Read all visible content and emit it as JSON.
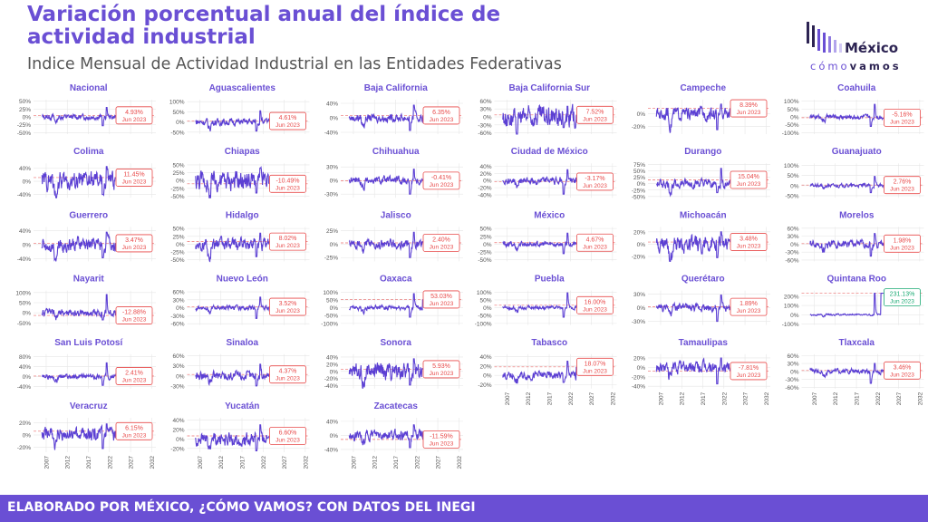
{
  "header": {
    "title": "Variación porcentual anual del índice de actividad industrial",
    "subtitle": "Indice Mensual de Actividad Industrial en las Entidades Federativas"
  },
  "logo": {
    "text_top": "México",
    "text_bottom_a": "cómo",
    "text_bottom_b": "vamos"
  },
  "footer": {
    "text": "ELABORADO POR MÉXICO, ¿CÓMO VAMOS? CON DATOS DEL INEGI"
  },
  "colors": {
    "accent": "#6a4fd4",
    "line": "#5b3fd3",
    "label_red": "#e84a4a",
    "label_green": "#1aaa73",
    "grid": "#e6e6e6"
  },
  "chart_data": {
    "type": "line",
    "x_ticks": [
      "2007",
      "2012",
      "2017",
      "2022",
      "2027",
      "2032"
    ],
    "xlim": [
      2004,
      2033
    ],
    "data_range": [
      2006,
      2023.42
    ],
    "last_period_label": "Jun 2023",
    "panels": [
      {
        "name": "Nacional",
        "last": "4.93%",
        "y_ticks": [
          "50%",
          "25%",
          "0%",
          "-25%",
          "-50%"
        ],
        "ylim": [
          -55,
          55
        ],
        "tick_values": [
          50,
          25,
          0,
          -25,
          -50
        ],
        "amp": 6,
        "spike": 30,
        "dip": -28
      },
      {
        "name": "Aguascalientes",
        "last": "4.61%",
        "y_ticks": [
          "100%",
          "50%",
          "0%",
          "-50%"
        ],
        "ylim": [
          -60,
          110
        ],
        "tick_values": [
          100,
          50,
          0,
          -50
        ],
        "amp": 12,
        "spike": 55,
        "dip": -45
      },
      {
        "name": "Baja California",
        "last": "6.35%",
        "y_ticks": [
          "40%",
          "0%",
          "-40%"
        ],
        "ylim": [
          -45,
          50
        ],
        "tick_values": [
          40,
          0,
          -40
        ],
        "amp": 8,
        "spike": 35,
        "dip": -35
      },
      {
        "name": "Baja California Sur",
        "last": "7.52%",
        "y_ticks": [
          "60%",
          "30%",
          "0%",
          "-30%",
          "-60%"
        ],
        "ylim": [
          -65,
          65
        ],
        "tick_values": [
          60,
          30,
          0,
          -30,
          -60
        ],
        "amp": 28,
        "spike": 40,
        "dip": -40
      },
      {
        "name": "Campeche",
        "last": "8.39%",
        "y_ticks": [
          "0%",
          "-20%"
        ],
        "ylim": [
          -32,
          22
        ],
        "tick_values": [
          0,
          -20
        ],
        "amp": 7,
        "spike": 15,
        "dip": -25
      },
      {
        "name": "Coahuila",
        "last": "-5.16%",
        "y_ticks": [
          "100%",
          "50%",
          "0%",
          "-50%",
          "-100%"
        ],
        "ylim": [
          -110,
          110
        ],
        "tick_values": [
          100,
          50,
          0,
          -50,
          -100
        ],
        "amp": 10,
        "spike": 80,
        "dip": -60
      },
      {
        "name": "Colima",
        "last": "11.45%",
        "y_ticks": [
          "40%",
          "0%",
          "-40%"
        ],
        "ylim": [
          -50,
          55
        ],
        "tick_values": [
          40,
          0,
          -40
        ],
        "amp": 20,
        "spike": 45,
        "dip": -40
      },
      {
        "name": "Chiapas",
        "last": "-10.49%",
        "y_ticks": [
          "50%",
          "25%",
          "0%",
          "-25%",
          "-50%"
        ],
        "ylim": [
          -55,
          55
        ],
        "tick_values": [
          50,
          25,
          0,
          -25,
          -50
        ],
        "amp": 22,
        "spike": 40,
        "dip": -40
      },
      {
        "name": "Chihuahua",
        "last": "-0.41%",
        "y_ticks": [
          "30%",
          "0%",
          "-30%"
        ],
        "ylim": [
          -38,
          38
        ],
        "tick_values": [
          30,
          0,
          -30
        ],
        "amp": 6,
        "spike": 25,
        "dip": -30
      },
      {
        "name": "Ciudad de México",
        "last": "-3.17%",
        "y_ticks": [
          "40%",
          "20%",
          "0%",
          "-20%",
          "-40%"
        ],
        "ylim": [
          -48,
          48
        ],
        "tick_values": [
          40,
          20,
          0,
          -20,
          -40
        ],
        "amp": 7,
        "spike": 30,
        "dip": -38
      },
      {
        "name": "Durango",
        "last": "15.04%",
        "y_ticks": [
          "75%",
          "50%",
          "25%",
          "0%",
          "-25%",
          "-50%"
        ],
        "ylim": [
          -55,
          80
        ],
        "tick_values": [
          75,
          50,
          25,
          0,
          -25,
          -50
        ],
        "amp": 12,
        "spike": 60,
        "dip": -35
      },
      {
        "name": "Guanajuato",
        "last": "2.76%",
        "y_ticks": [
          "100%",
          "50%",
          "0%",
          "-50%"
        ],
        "ylim": [
          -60,
          110
        ],
        "tick_values": [
          100,
          50,
          0,
          -50
        ],
        "amp": 6,
        "spike": 45,
        "dip": -35
      },
      {
        "name": "Guerrero",
        "last": "3.47%",
        "y_ticks": [
          "40%",
          "0%",
          "-40%"
        ],
        "ylim": [
          -48,
          50
        ],
        "tick_values": [
          40,
          0,
          -40
        ],
        "amp": 14,
        "spike": 35,
        "dip": -38
      },
      {
        "name": "Hidalgo",
        "last": "8.02%",
        "y_ticks": [
          "50%",
          "25%",
          "0%",
          "-25%",
          "-50%"
        ],
        "ylim": [
          -55,
          55
        ],
        "tick_values": [
          50,
          25,
          0,
          -25,
          -50
        ],
        "amp": 14,
        "spike": 35,
        "dip": -40
      },
      {
        "name": "Jalisco",
        "last": "2.40%",
        "y_ticks": [
          "25%",
          "0%",
          "-25%"
        ],
        "ylim": [
          -32,
          32
        ],
        "tick_values": [
          25,
          0,
          -25
        ],
        "amp": 6,
        "spike": 22,
        "dip": -25
      },
      {
        "name": "México",
        "last": "4.67%",
        "y_ticks": [
          "50%",
          "25%",
          "0%",
          "-25%",
          "-50%"
        ],
        "ylim": [
          -55,
          55
        ],
        "tick_values": [
          50,
          25,
          0,
          -25,
          -50
        ],
        "amp": 6,
        "spike": 35,
        "dip": -30
      },
      {
        "name": "Michoacán",
        "last": "3.48%",
        "y_ticks": [
          "20%",
          "0%",
          "-20%"
        ],
        "ylim": [
          -28,
          28
        ],
        "tick_values": [
          20,
          0,
          -20
        ],
        "amp": 9,
        "spike": 20,
        "dip": -22
      },
      {
        "name": "Morelos",
        "last": "1.98%",
        "y_ticks": [
          "60%",
          "30%",
          "0%",
          "-30%",
          "-60%"
        ],
        "ylim": [
          -65,
          65
        ],
        "tick_values": [
          60,
          30,
          0,
          -30,
          -60
        ],
        "amp": 10,
        "spike": 40,
        "dip": -45
      },
      {
        "name": "Nayarit",
        "last": "-12.88%",
        "y_ticks": [
          "100%",
          "50%",
          "0%",
          "-50%"
        ],
        "ylim": [
          -60,
          110
        ],
        "tick_values": [
          100,
          50,
          0,
          -50
        ],
        "amp": 12,
        "spike": 90,
        "dip": -35
      },
      {
        "name": "Nuevo León",
        "last": "3.52%",
        "y_ticks": [
          "60%",
          "30%",
          "0%",
          "-30%",
          "-60%"
        ],
        "ylim": [
          -65,
          65
        ],
        "tick_values": [
          60,
          30,
          0,
          -30,
          -60
        ],
        "amp": 6,
        "spike": 40,
        "dip": -40
      },
      {
        "name": "Oaxaca",
        "last": "53.03%",
        "y_ticks": [
          "100%",
          "50%",
          "0%",
          "-50%",
          "-100%"
        ],
        "ylim": [
          -110,
          110
        ],
        "tick_values": [
          100,
          50,
          0,
          -50,
          -100
        ],
        "amp": 10,
        "spike": 90,
        "dip": -60
      },
      {
        "name": "Puebla",
        "last": "16.00%",
        "y_ticks": [
          "100%",
          "50%",
          "0%",
          "-50%",
          "-100%"
        ],
        "ylim": [
          -110,
          110
        ],
        "tick_values": [
          100,
          50,
          0,
          -50,
          -100
        ],
        "amp": 8,
        "spike": 95,
        "dip": -60
      },
      {
        "name": "Querétaro",
        "last": "1.89%",
        "y_ticks": [
          "30%",
          "0%",
          "-30%"
        ],
        "ylim": [
          -38,
          38
        ],
        "tick_values": [
          30,
          0,
          -30
        ],
        "amp": 6,
        "spike": 28,
        "dip": -30
      },
      {
        "name": "Quintana Roo",
        "last": "231.13%",
        "y_ticks": [
          "200%",
          "100%",
          "0%",
          "-100%"
        ],
        "ylim": [
          -110,
          260
        ],
        "tick_values": [
          200,
          100,
          0,
          -100
        ],
        "amp": 6,
        "spike": 231,
        "dip": -10,
        "highlight": true
      },
      {
        "name": "San Luis Potosí",
        "last": "2.41%",
        "y_ticks": [
          "80%",
          "40%",
          "0%",
          "-40%"
        ],
        "ylim": [
          -48,
          90
        ],
        "tick_values": [
          80,
          40,
          0,
          -40
        ],
        "amp": 7,
        "spike": 55,
        "dip": -35
      },
      {
        "name": "Sinaloa",
        "last": "4.37%",
        "y_ticks": [
          "60%",
          "30%",
          "0%",
          "-30%"
        ],
        "ylim": [
          -38,
          65
        ],
        "tick_values": [
          60,
          30,
          0,
          -30
        ],
        "amp": 10,
        "spike": 35,
        "dip": -30
      },
      {
        "name": "Sonora",
        "last": "5.93%",
        "y_ticks": [
          "40%",
          "20%",
          "0%",
          "-20%",
          "-40%"
        ],
        "ylim": [
          -48,
          48
        ],
        "tick_values": [
          40,
          20,
          0,
          -20,
          -40
        ],
        "amp": 16,
        "spike": 35,
        "dip": -38
      },
      {
        "name": "Tabasco",
        "last": "18.07%",
        "y_ticks": [
          "40%",
          "20%",
          "0%",
          "-20%"
        ],
        "ylim": [
          -28,
          45
        ],
        "tick_values": [
          40,
          20,
          0,
          -20
        ],
        "amp": 6,
        "spike": 30,
        "dip": -15
      },
      {
        "name": "Tamaulipas",
        "last": "-7.81%",
        "y_ticks": [
          "20%",
          "0%",
          "-20%",
          "-40%"
        ],
        "ylim": [
          -45,
          28
        ],
        "tick_values": [
          20,
          0,
          -20,
          -40
        ],
        "amp": 9,
        "spike": 20,
        "dip": -35
      },
      {
        "name": "Tlaxcala",
        "last": "3.46%",
        "y_ticks": [
          "60%",
          "30%",
          "0%",
          "-30%",
          "-60%"
        ],
        "ylim": [
          -65,
          65
        ],
        "tick_values": [
          60,
          30,
          0,
          -30,
          -60
        ],
        "amp": 7,
        "spike": 30,
        "dip": -45
      },
      {
        "name": "Veracruz",
        "last": "6.15%",
        "y_ticks": [
          "20%",
          "0%",
          "-20%"
        ],
        "ylim": [
          -28,
          28
        ],
        "tick_values": [
          20,
          0,
          -20
        ],
        "amp": 8,
        "spike": 18,
        "dip": -22
      },
      {
        "name": "Yucatán",
        "last": "6.60%",
        "y_ticks": [
          "40%",
          "20%",
          "0%",
          "-20%"
        ],
        "ylim": [
          -28,
          45
        ],
        "tick_values": [
          40,
          20,
          0,
          -20
        ],
        "amp": 10,
        "spike": 30,
        "dip": -25
      },
      {
        "name": "Zacatecas",
        "last": "-11.59%",
        "y_ticks": [
          "40%",
          "0%",
          "-40%"
        ],
        "ylim": [
          -48,
          50
        ],
        "tick_values": [
          40,
          0,
          -40
        ],
        "amp": 10,
        "spike": 30,
        "dip": -35
      }
    ]
  }
}
